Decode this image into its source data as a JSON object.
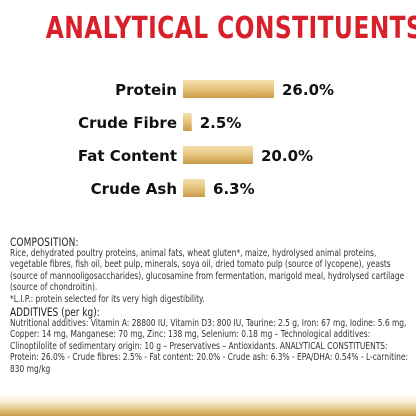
{
  "title": "ANALYTICAL CONSTITUENTS",
  "chart_data": {
    "type": "bar",
    "orientation": "horizontal",
    "categories": [
      "Protein",
      "Crude Fibre",
      "Fat Content",
      "Crude Ash"
    ],
    "values": [
      26.0,
      2.5,
      20.0,
      6.3
    ],
    "value_labels": [
      "26.0%",
      "2.5%",
      "20.0%",
      "6.3%"
    ],
    "xlim": [
      0,
      26.0
    ],
    "bar_color": "#e3c27c",
    "title": "",
    "xlabel": "",
    "ylabel": ""
  },
  "composition": {
    "heading": "COMPOSITION:",
    "text": "Rice, dehydrated poultry proteins, animal fats, wheat gluten*, maize, hydrolysed animal proteins, vegetable fibres, fish oil, beet pulp, minerals, soya oil, dried tomato pulp (source of lycopene), yeasts (source of mannooligosaccharides), glucosamine from fermentation, marigold meal, hydrolysed cartilage (source of chondroitin).",
    "footnote": "*L.I.P.: protein selected for its very high digestibility.",
    "additives_heading": "ADDITIVES (per kg):",
    "additives_text": "Nutritional additives: Vitamin A: 28800 IU, Vitamin D3: 800 IU, Taurine: 2.5 g, Iron: 67 mg, Iodine: 5.6 mg, Copper: 14 mg, Manganese: 70 mg, Zinc: 138 mg, Selenium: 0.18 mg – Technological additives: Clinoptilolite of sedimentary origin: 10 g – Preservatives – Antioxidants. ANALYTICAL CONSTITUENTS: Protein: 26.0% - Crude fibres: 2.5% - Fat content: 20.0% - Crude ash: 6.3% - EPA/DHA: 0.54% - L-carnitine: 830 mg/kg"
  }
}
